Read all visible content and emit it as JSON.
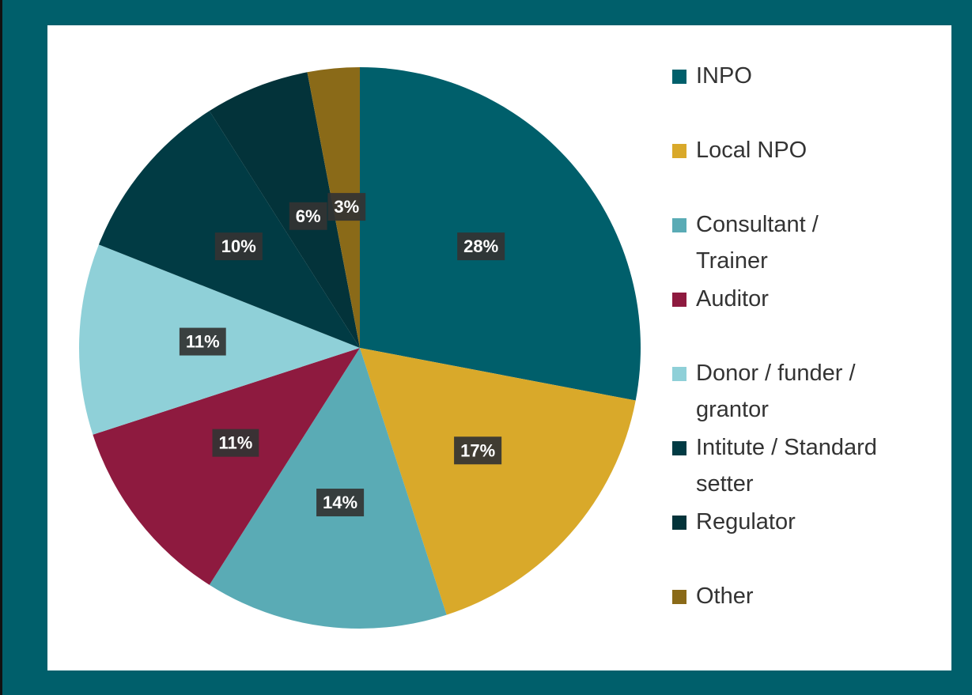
{
  "chart_data": {
    "type": "pie",
    "categories": [
      "INPO",
      "Local NPO",
      "Consultant / Trainer",
      "Auditor",
      "Donor / funder / grantor",
      "Intitute / Standard setter",
      "Regulator",
      "Other"
    ],
    "values": [
      28,
      17,
      14,
      11,
      11,
      10,
      6,
      3
    ],
    "value_labels": [
      "28%",
      "17%",
      "14%",
      "11%",
      "11%",
      "10%",
      "6%",
      "3%"
    ],
    "colors": [
      "#005f6b",
      "#d9a92a",
      "#5aabb5",
      "#8e1a3f",
      "#8fd0d8",
      "#013b44",
      "#03333a",
      "#8a6a18"
    ],
    "legend": "right"
  }
}
